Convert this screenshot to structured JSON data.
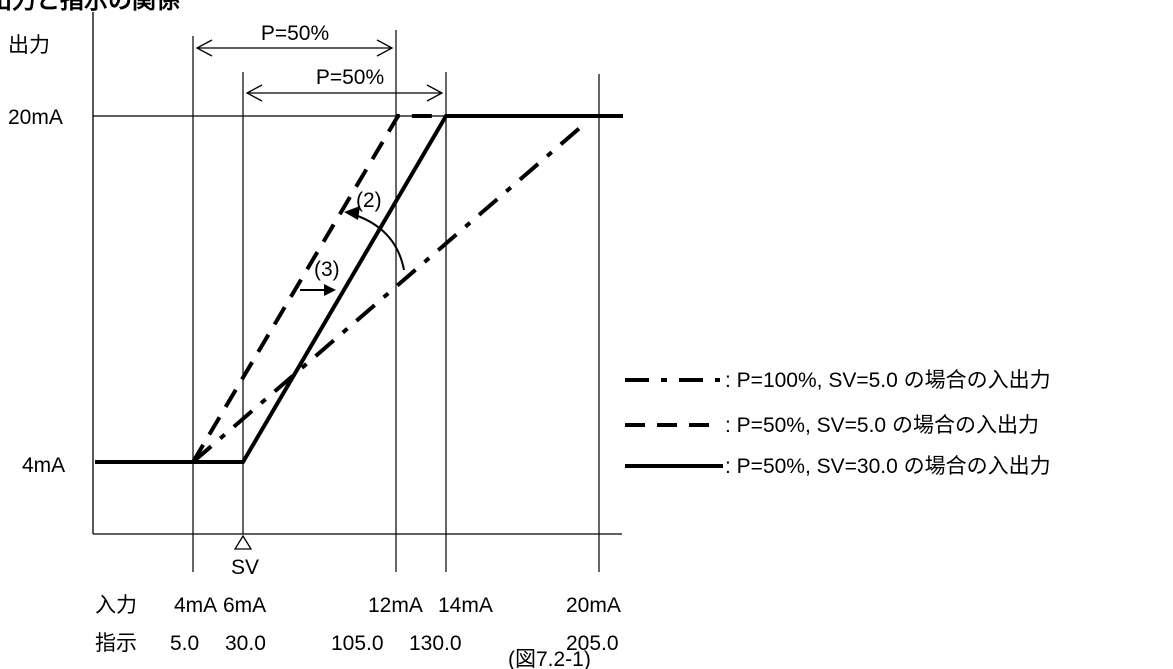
{
  "header_fragment": "出力と指示の関係",
  "y_axis": {
    "label": "出力",
    "tick_20": "20mA",
    "tick_4": "4mA"
  },
  "span_arrows": {
    "upper": "P=50%",
    "lower": "P=50%"
  },
  "sv_marker": "SV",
  "curve_labels": {
    "arrow_2": "(2)",
    "arrow_3": "(3)"
  },
  "bottom": {
    "input_label": "入力",
    "indicator_label": "指示",
    "input_values": [
      "4mA",
      "6mA",
      "12mA",
      "14mA",
      "20mA"
    ],
    "indicator_values": [
      "5.0",
      "30.0",
      "105.0",
      "130.0",
      "205.0"
    ]
  },
  "legend": [
    {
      "style": "dash-dot",
      "text": ": P=100%, SV=5.0 の場合の入出力"
    },
    {
      "style": "dashed",
      "text": ": P=50%, SV=5.0 の場合の入出力"
    },
    {
      "style": "solid",
      "text": ": P=50%, SV=30.0 の場合の入出力"
    }
  ],
  "figure_caption": "(図7.2-1)",
  "colors": {
    "ink": "#000000",
    "background": "#ffffff"
  }
}
